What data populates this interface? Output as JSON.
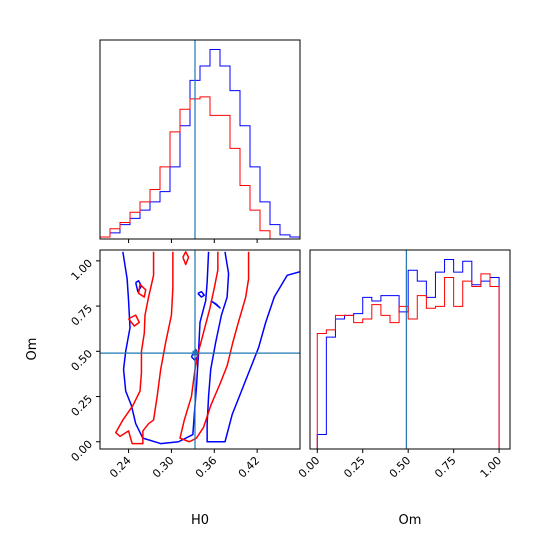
{
  "chart_data": [
    {
      "type": "step-histogram",
      "panel": "H0-marginal",
      "xlim": [
        0.2,
        0.48
      ],
      "xticks": [
        0.24,
        0.3,
        0.36,
        0.42
      ],
      "truth": 0.333,
      "series": [
        {
          "color": "#0000ff",
          "bin_edges": [
            0.2,
            0.214,
            0.228,
            0.242,
            0.256,
            0.27,
            0.284,
            0.298,
            0.312,
            0.326,
            0.34,
            0.354,
            0.368,
            0.382,
            0.396,
            0.41,
            0.424,
            0.438,
            0.452,
            0.466,
            0.48
          ],
          "values": [
            0.01,
            0.03,
            0.07,
            0.1,
            0.14,
            0.18,
            0.23,
            0.35,
            0.55,
            0.77,
            0.84,
            0.92,
            0.84,
            0.72,
            0.55,
            0.35,
            0.18,
            0.07,
            0.02,
            0.01
          ]
        },
        {
          "color": "#ff0000",
          "bin_edges": [
            0.2,
            0.214,
            0.228,
            0.242,
            0.256,
            0.27,
            0.284,
            0.298,
            0.312,
            0.326,
            0.34,
            0.354,
            0.368,
            0.382,
            0.396,
            0.41,
            0.424,
            0.438,
            0.452,
            0.466,
            0.48
          ],
          "values": [
            0.01,
            0.05,
            0.08,
            0.13,
            0.18,
            0.24,
            0.35,
            0.52,
            0.63,
            0.68,
            0.69,
            0.6,
            0.6,
            0.44,
            0.26,
            0.14,
            0.04,
            0.0,
            0.0,
            0.0
          ]
        }
      ]
    },
    {
      "type": "contour",
      "panel": "H0-Om-joint",
      "xlabel": "H0",
      "ylabel": "Om",
      "xlim": [
        0.2,
        0.48
      ],
      "ylim": [
        -0.04,
        1.06
      ],
      "xticks": [
        0.24,
        0.3,
        0.36,
        0.42
      ],
      "yticks": [
        0.0,
        0.25,
        0.5,
        0.75,
        1.0
      ],
      "truth": [
        0.333,
        0.49
      ],
      "series": [
        {
          "color": "#0000ff",
          "contours": [
            [
              [
                0.232,
                1.05
              ],
              [
                0.238,
                0.9
              ],
              [
                0.24,
                0.78
              ],
              [
                0.242,
                0.63
              ],
              [
                0.236,
                0.5
              ],
              [
                0.233,
                0.4
              ],
              [
                0.236,
                0.28
              ],
              [
                0.244,
                0.2
              ],
              [
                0.25,
                0.1
              ],
              [
                0.26,
                0.02
              ],
              [
                0.285,
                -0.01
              ],
              [
                0.31,
                0.0
              ],
              [
                0.33,
                0.04
              ],
              [
                0.332,
                0.15
              ],
              [
                0.335,
                0.3
              ],
              [
                0.338,
                0.5
              ],
              [
                0.34,
                0.66
              ],
              [
                0.348,
                0.78
              ],
              [
                0.35,
                0.88
              ],
              [
                0.352,
                1.05
              ]
            ],
            [
              [
                0.375,
                1.05
              ],
              [
                0.38,
                0.93
              ],
              [
                0.378,
                0.8
              ],
              [
                0.37,
                0.7
              ],
              [
                0.362,
                0.55
              ],
              [
                0.355,
                0.4
              ],
              [
                0.352,
                0.25
              ],
              [
                0.35,
                0.1
              ],
              [
                0.35,
                0.0
              ],
              [
                0.375,
                0.0
              ],
              [
                0.385,
                0.15
              ],
              [
                0.398,
                0.28
              ],
              [
                0.41,
                0.4
              ],
              [
                0.422,
                0.52
              ],
              [
                0.432,
                0.66
              ],
              [
                0.444,
                0.8
              ],
              [
                0.462,
                0.92
              ],
              [
                0.48,
                0.94
              ]
            ],
            [
              [
                0.25,
                0.88
              ],
              [
                0.253,
                0.83
              ],
              [
                0.258,
                0.86
              ],
              [
                0.254,
                0.89
              ],
              [
                0.25,
                0.88
              ]
            ],
            [
              [
                0.337,
                0.82
              ],
              [
                0.342,
                0.8
              ],
              [
                0.346,
                0.81
              ],
              [
                0.342,
                0.83
              ],
              [
                0.337,
                0.82
              ]
            ],
            [
              [
                0.355,
                0.78
              ],
              [
                0.362,
                0.76
              ],
              [
                0.368,
                0.74
              ],
              [
                0.363,
                0.76
              ],
              [
                0.355,
                0.78
              ]
            ],
            [
              [
                0.328,
                0.47
              ],
              [
                0.333,
                0.45
              ],
              [
                0.338,
                0.48
              ],
              [
                0.334,
                0.51
              ],
              [
                0.328,
                0.47
              ]
            ]
          ]
        },
        {
          "color": "#ff0000",
          "contours": [
            [
              [
                0.275,
                1.05
              ],
              [
                0.275,
                0.92
              ],
              [
                0.268,
                0.8
              ],
              [
                0.263,
                0.7
              ],
              [
                0.262,
                0.6
              ],
              [
                0.258,
                0.5
              ],
              [
                0.258,
                0.38
              ],
              [
                0.256,
                0.28
              ],
              [
                0.246,
                0.2
              ],
              [
                0.232,
                0.12
              ],
              [
                0.222,
                0.05
              ],
              [
                0.228,
                0.03
              ],
              [
                0.24,
                0.06
              ],
              [
                0.245,
                -0.01
              ],
              [
                0.26,
                -0.01
              ],
              [
                0.26,
                0.06
              ],
              [
                0.268,
                0.1
              ],
              [
                0.275,
                0.12
              ],
              [
                0.28,
                0.25
              ],
              [
                0.285,
                0.4
              ],
              [
                0.292,
                0.55
              ],
              [
                0.3,
                0.7
              ],
              [
                0.302,
                0.85
              ],
              [
                0.302,
                1.05
              ]
            ],
            [
              [
                0.365,
                1.05
              ],
              [
                0.365,
                0.95
              ],
              [
                0.36,
                0.85
              ],
              [
                0.354,
                0.74
              ],
              [
                0.346,
                0.62
              ],
              [
                0.338,
                0.5
              ],
              [
                0.333,
                0.4
              ],
              [
                0.328,
                0.25
              ],
              [
                0.318,
                0.12
              ],
              [
                0.312,
                0.02
              ],
              [
                0.325,
                0.0
              ],
              [
                0.335,
                0.02
              ],
              [
                0.345,
                0.08
              ],
              [
                0.355,
                0.2
              ],
              [
                0.368,
                0.32
              ],
              [
                0.378,
                0.42
              ],
              [
                0.386,
                0.55
              ],
              [
                0.393,
                0.65
              ],
              [
                0.404,
                0.8
              ],
              [
                0.408,
                0.9
              ],
              [
                0.408,
                1.05
              ]
            ],
            [
              [
                0.24,
                0.68
              ],
              [
                0.25,
                0.7
              ],
              [
                0.255,
                0.66
              ],
              [
                0.248,
                0.64
              ],
              [
                0.24,
                0.68
              ]
            ],
            [
              [
                0.256,
                0.87
              ],
              [
                0.264,
                0.84
              ],
              [
                0.262,
                0.8
              ],
              [
                0.254,
                0.82
              ],
              [
                0.256,
                0.87
              ]
            ],
            [
              [
                0.316,
                1.02
              ],
              [
                0.32,
                0.98
              ],
              [
                0.324,
                1.02
              ],
              [
                0.32,
                1.05
              ],
              [
                0.316,
                1.02
              ]
            ]
          ]
        }
      ]
    },
    {
      "type": "step-histogram",
      "panel": "Om-marginal",
      "xlabel": "Om",
      "xlim": [
        -0.04,
        1.06
      ],
      "xticks": [
        0.0,
        0.25,
        0.5,
        0.75,
        1.0
      ],
      "truth": 0.49,
      "series": [
        {
          "color": "#0000ff",
          "bin_edges": [
            0.0,
            0.05,
            0.1,
            0.15,
            0.2,
            0.25,
            0.3,
            0.35,
            0.4,
            0.45,
            0.5,
            0.55,
            0.6,
            0.65,
            0.7,
            0.75,
            0.8,
            0.85,
            0.9,
            0.95,
            1.0
          ],
          "values": [
            0.08,
            0.62,
            0.72,
            0.74,
            0.75,
            0.84,
            0.82,
            0.85,
            0.85,
            0.76,
            0.99,
            0.93,
            0.84,
            0.98,
            1.05,
            0.98,
            1.04,
            0.91,
            0.93,
            0.95
          ]
        },
        {
          "color": "#ff0000",
          "bin_edges": [
            0.0,
            0.05,
            0.1,
            0.15,
            0.2,
            0.25,
            0.3,
            0.35,
            0.4,
            0.45,
            0.5,
            0.55,
            0.6,
            0.65,
            0.7,
            0.75,
            0.8,
            0.85,
            0.9,
            0.95,
            1.0
          ],
          "values": [
            0.64,
            0.66,
            0.74,
            0.74,
            0.7,
            0.72,
            0.8,
            0.74,
            0.7,
            0.79,
            0.72,
            0.85,
            0.78,
            0.79,
            0.95,
            0.79,
            0.93,
            0.9,
            0.97,
            0.9
          ]
        }
      ]
    }
  ],
  "colors": {
    "truth": "#1f77b4",
    "series_a": "#0000ff",
    "series_b": "#ff0000"
  }
}
